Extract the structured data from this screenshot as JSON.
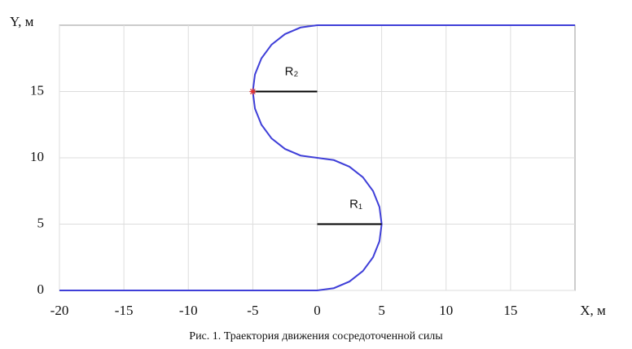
{
  "chart_data": {
    "type": "line",
    "caption": "Рис. 1. Траектория движения сосредоточенной силы",
    "x_label": "X, м",
    "y_label": "Y, м",
    "xlim": [
      -20,
      20
    ],
    "ylim": [
      0,
      20
    ],
    "xticks": [
      -20,
      -15,
      -10,
      -5,
      0,
      5,
      10,
      15
    ],
    "yticks": [
      0,
      5,
      10,
      15
    ],
    "grid": true,
    "series": [
      {
        "color": "#3f3fd8",
        "x": [
          -20,
          0,
          1.29,
          2.5,
          3.54,
          4.33,
          4.83,
          5,
          4.83,
          4.33,
          3.54,
          2.5,
          1.29,
          0,
          -1.29,
          -2.5,
          -3.54,
          -4.33,
          -4.83,
          -5,
          -4.83,
          -4.33,
          -3.54,
          -2.5,
          -1.29,
          0,
          20
        ],
        "values": [
          0,
          0,
          0.17,
          0.67,
          1.46,
          2.5,
          3.71,
          5,
          6.29,
          7.5,
          8.54,
          9.33,
          9.83,
          10,
          10.17,
          10.67,
          11.46,
          12.5,
          13.71,
          15,
          16.29,
          17.5,
          18.54,
          19.33,
          19.83,
          20,
          20
        ]
      }
    ],
    "radii": [
      {
        "label": "R₁",
        "x": [
          0,
          5
        ],
        "y": [
          5,
          5
        ]
      },
      {
        "label": "R₂",
        "x": [
          -5,
          0
        ],
        "y": [
          15,
          15
        ]
      }
    ],
    "marker": {
      "x": -5,
      "y": 15,
      "color": "#e03030"
    }
  }
}
